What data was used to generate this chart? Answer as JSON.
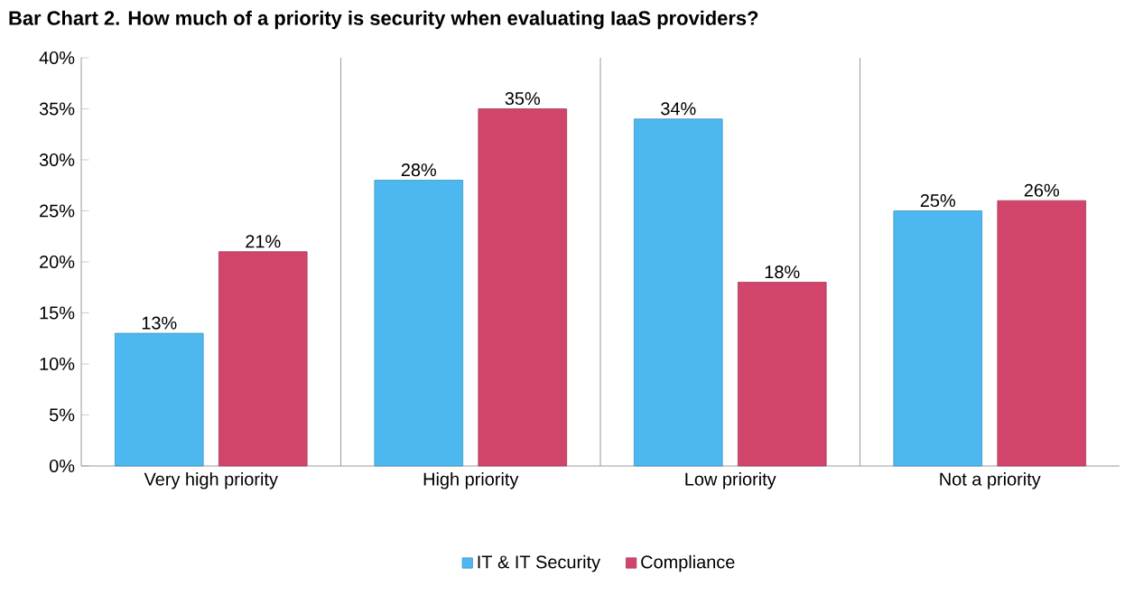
{
  "chart_data": {
    "type": "bar",
    "title": "Bar Chart 2. How much of a priority is security when evaluating IaaS providers?",
    "categories": [
      "Very high priority",
      "High priority",
      "Low priority",
      "Not a priority"
    ],
    "series": [
      {
        "name": "IT & IT Security",
        "color": "#4db8f0",
        "values": [
          13,
          28,
          34,
          25
        ],
        "value_labels": [
          "13%",
          "28%",
          "34%",
          "25%"
        ]
      },
      {
        "name": "Compliance",
        "color": "#d1456a",
        "values": [
          21,
          35,
          18,
          26
        ],
        "value_labels": [
          "21%",
          "35%",
          "18%",
          "26%"
        ]
      }
    ],
    "ylim": [
      0,
      40
    ],
    "yticks": [
      {
        "value": 0,
        "label": "0%"
      },
      {
        "value": 5,
        "label": "5%"
      },
      {
        "value": 10,
        "label": "10%"
      },
      {
        "value": 15,
        "label": "15%"
      },
      {
        "value": 20,
        "label": "20%"
      },
      {
        "value": 25,
        "label": "25%"
      },
      {
        "value": 30,
        "label": "30%"
      },
      {
        "value": 35,
        "label": "35%"
      },
      {
        "value": 40,
        "label": "40%"
      }
    ],
    "grid": "x",
    "legend": "bottom"
  }
}
